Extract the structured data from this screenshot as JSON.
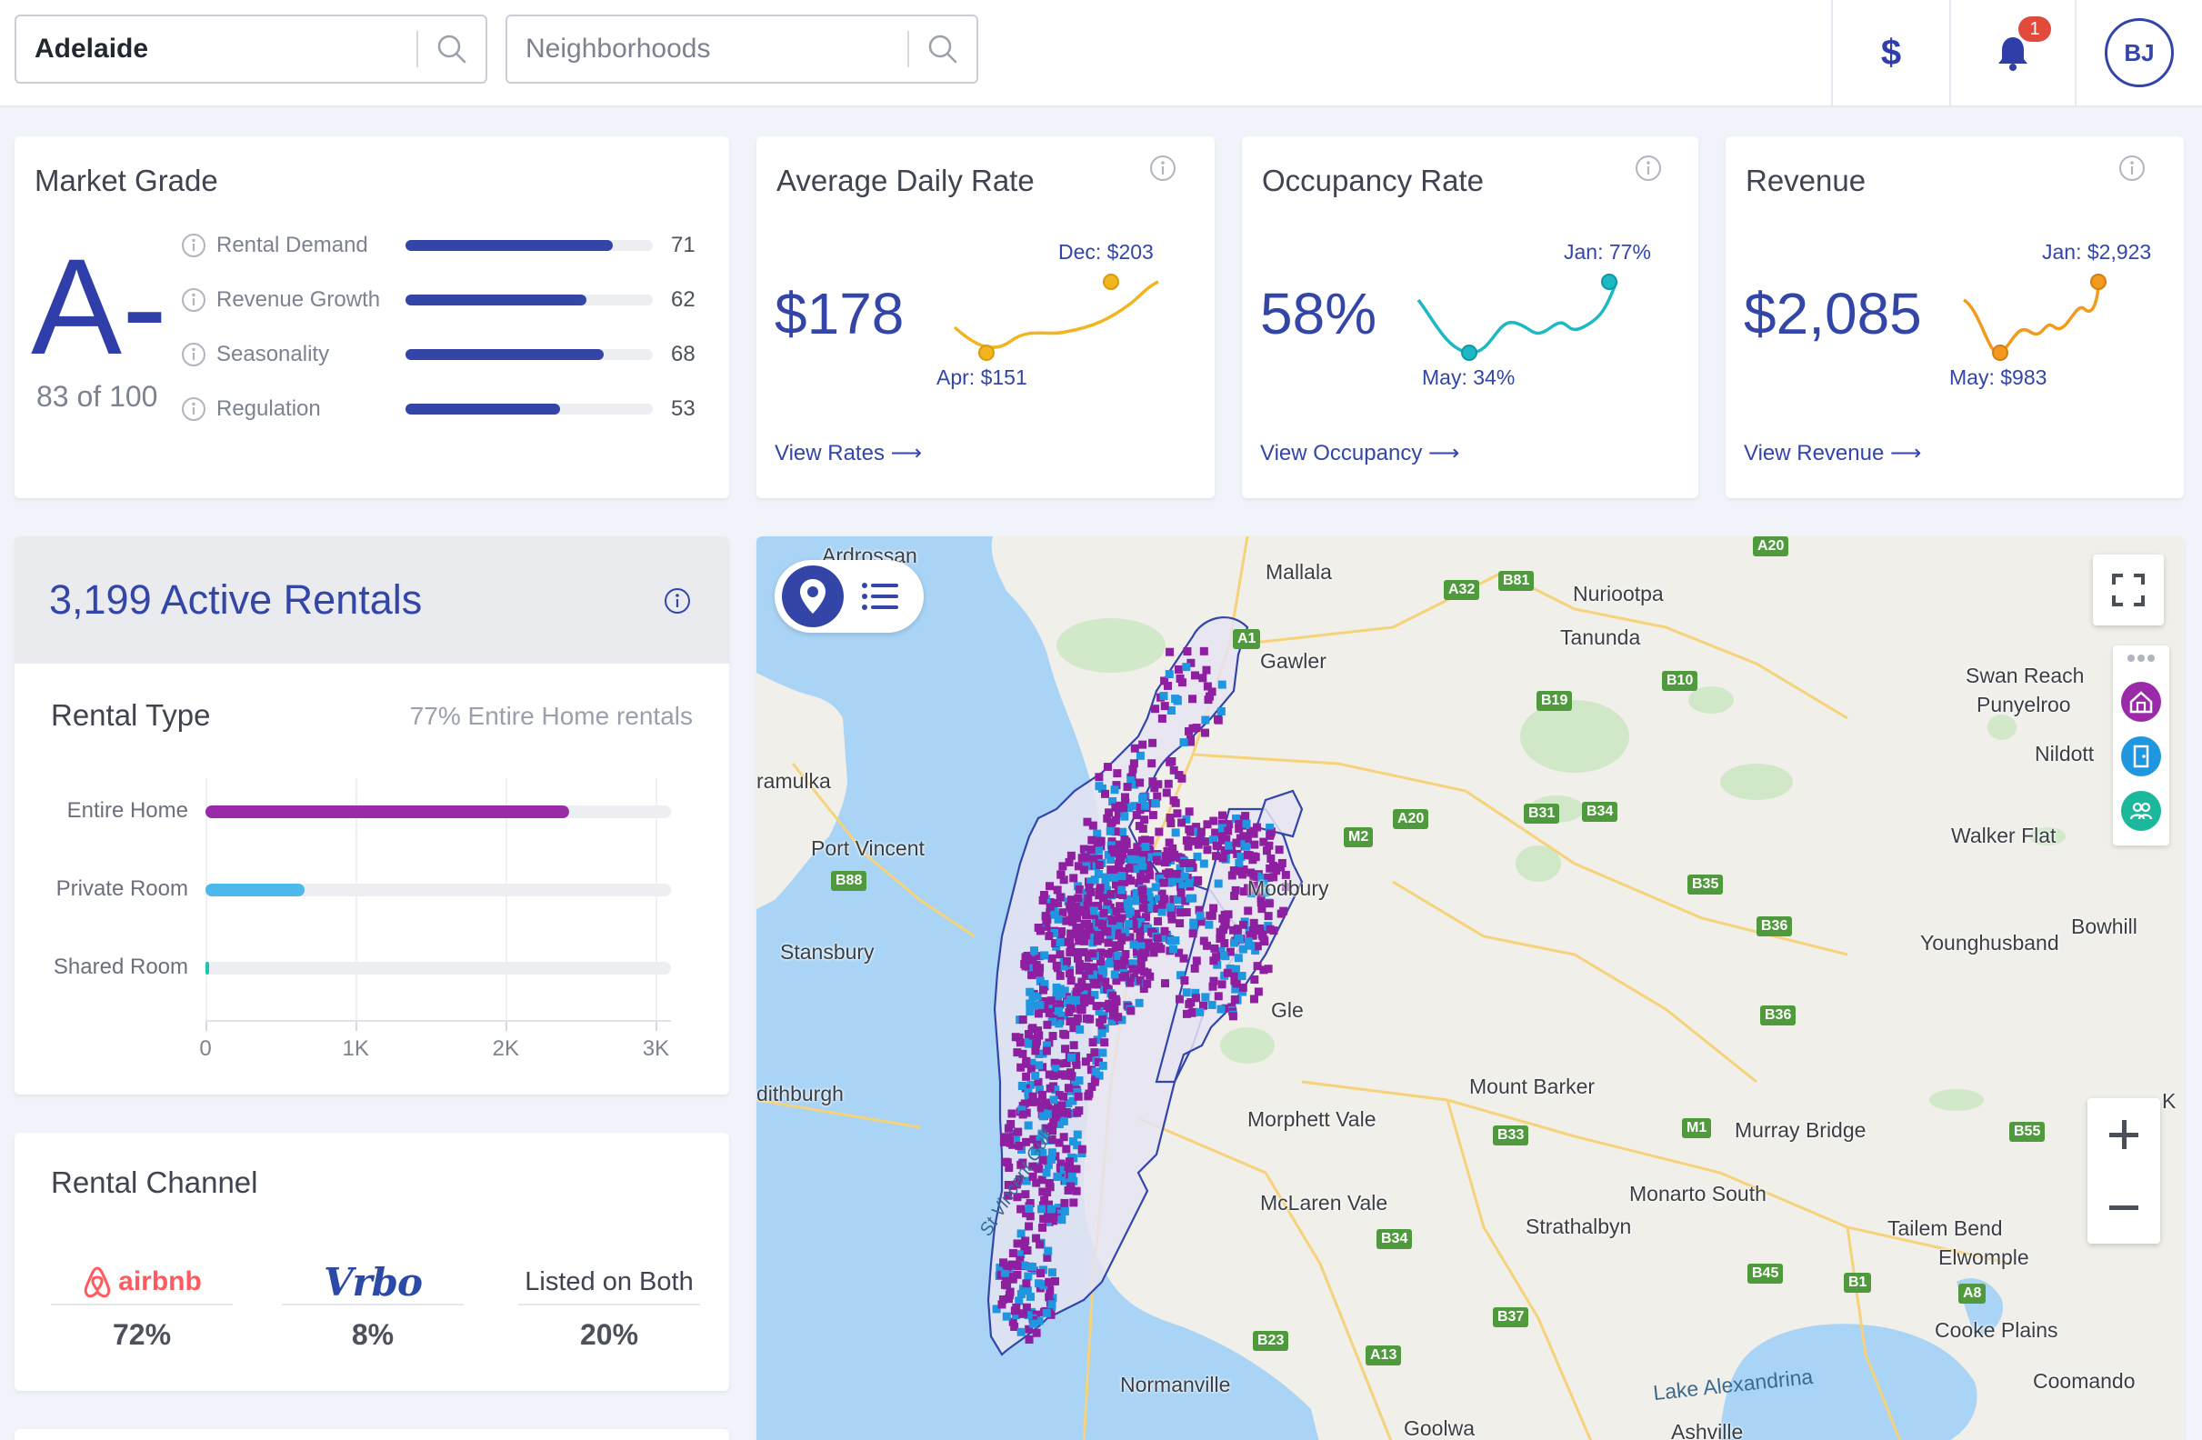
{
  "header": {
    "city_search": {
      "value": "Adelaide"
    },
    "neighborhood_search": {
      "placeholder": "Neighborhoods"
    },
    "currency_symbol": "$",
    "notifications_count": "1",
    "user_initials": "BJ"
  },
  "market_grade": {
    "title": "Market Grade",
    "grade": "A-",
    "score_text": "83 of 100",
    "metrics": [
      {
        "label": "Rental Demand",
        "value": 71
      },
      {
        "label": "Revenue Growth",
        "value": 62
      },
      {
        "label": "Seasonality",
        "value": 68
      },
      {
        "label": "Regulation",
        "value": 53
      }
    ]
  },
  "kpis": {
    "adr": {
      "title": "Average Daily Rate",
      "value": "$178",
      "high_label": "Dec: $203",
      "low_label": "Apr: $151",
      "link": "View Rates ⟶",
      "color": "#f2b51d"
    },
    "occupancy": {
      "title": "Occupancy Rate",
      "value": "58%",
      "high_label": "Jan: 77%",
      "low_label": "May: 34%",
      "link": "View Occupancy ⟶",
      "color": "#1cb8c4"
    },
    "revenue": {
      "title": "Revenue",
      "value": "$2,085",
      "high_label": "Jan: $2,923",
      "low_label": "May: $983",
      "link": "View Revenue ⟶",
      "color": "#f39a1e"
    }
  },
  "active_rentals": {
    "title": "3,199 Active Rentals",
    "rental_type": {
      "title": "Rental Type",
      "note": "77% Entire Home rentals",
      "chart_data": {
        "type": "bar",
        "orientation": "horizontal",
        "categories": [
          "Entire Home",
          "Private Room",
          "Shared Room"
        ],
        "values": [
          2500,
          680,
          10
        ],
        "colors": [
          "#9b2aa8",
          "#4db8ec",
          "#1cc4b4"
        ],
        "xticks": [
          "0",
          "1K",
          "2K",
          "3K"
        ],
        "xlim": [
          0,
          3200
        ]
      }
    }
  },
  "rental_channel": {
    "title": "Rental Channel",
    "channels": [
      {
        "name": "airbnb",
        "pct": "72%"
      },
      {
        "name": "Vrbo",
        "pct": "8%"
      },
      {
        "name": "Listed on Both",
        "pct": "20%"
      }
    ]
  },
  "map": {
    "places": {
      "ardrossan": "Ardrossan",
      "mallala": "Mallala",
      "nuriootpa": "Nuriootpa",
      "tanunda": "Tanunda",
      "swan_reach": "Swan Reach",
      "punyelroo": "Punyelroo",
      "nildottie": "Nildott",
      "walker_flat": "Walker Flat",
      "bowhill": "Bowhill",
      "younghusband": "Younghusband",
      "port_vincent": "Port Vincent",
      "stansbury": "Stansbury",
      "edithburgh": "dithburgh",
      "curramulka": "ramulka",
      "mount_barker": "Mount Barker",
      "murray_bridge": "Murray Bridge",
      "monarto_south": "Monarto South",
      "strathalbyn": "Strathalbyn",
      "tailem_bend": "Tailem Bend",
      "elwomple": "Elwomple",
      "cooke_plains": "Cooke Plains",
      "coomando": "Coomando",
      "normanville": "Normanville",
      "goolwa": "Goolwa",
      "ashville": "Ashville",
      "gawler": "Gawler",
      "modbury": "Modbury",
      "glenelg": "Gle",
      "morphett_vale": "Morphett Vale",
      "mclaren_vale": "McLaren Vale",
      "k": "K"
    },
    "gulf_label": "St Vincent Gulf",
    "lake_label": "Lake Alexandrina",
    "shields": [
      "A20",
      "A32",
      "B81",
      "A1",
      "B19",
      "B10",
      "A20",
      "M2",
      "B31",
      "B34",
      "B35",
      "B36",
      "B36",
      "B88",
      "M1",
      "B55",
      "B33",
      "B34",
      "B45",
      "B1",
      "A8",
      "B37",
      "B23",
      "A13"
    ],
    "colors": {
      "water": "#a9d4f5",
      "land": "#f1efe9",
      "entire_home": "#8e1fa0",
      "private_room": "#1f97e0"
    }
  }
}
